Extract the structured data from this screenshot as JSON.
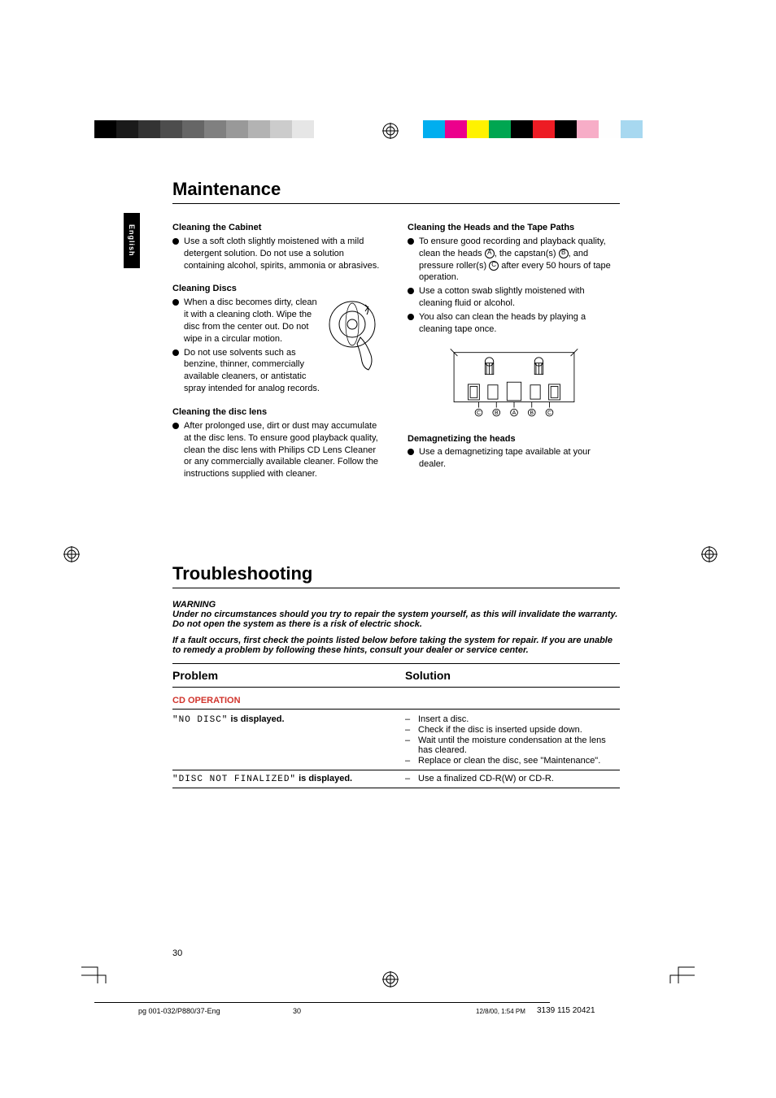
{
  "color_bars": {
    "left": [
      "#000000",
      "#1a1a1a",
      "#333333",
      "#4d4d4d",
      "#666666",
      "#808080",
      "#999999",
      "#b3b3b3",
      "#cccccc",
      "#e6e6e6"
    ],
    "right": [
      "#00aeef",
      "#ec008c",
      "#fff200",
      "#00a651",
      "#000000",
      "#ed1c24",
      "#000000",
      "#f7adc7",
      "#fefefe",
      "#a7d8f0"
    ]
  },
  "language_tab": "English",
  "maintenance": {
    "title": "Maintenance",
    "left_col": {
      "cabinet_head": "Cleaning the Cabinet",
      "cabinet_text": "Use a soft cloth slightly moistened with a mild detergent solution. Do not use a solution containing alcohol, spirits, ammonia or abrasives.",
      "discs_head": "Cleaning Discs",
      "discs_text1": "When a disc becomes dirty, clean it with a cleaning cloth. Wipe the disc from the center out.  Do not wipe in a circular motion.",
      "discs_text2": "Do not use solvents such as benzine, thinner, commercially available cleaners, or antistatic spray intended for analog records.",
      "lens_head": "Cleaning the disc lens",
      "lens_text": "After prolonged use, dirt or dust may accumulate at the disc lens. To ensure good playback quality, clean the disc lens with Philips CD Lens Cleaner or any commercially available cleaner. Follow the instructions supplied with cleaner."
    },
    "right_col": {
      "heads_head": "Cleaning the Heads and the Tape Paths",
      "heads_text1_pre": "To ensure good recording and playback quality, clean the heads ",
      "heads_text1_mid1": ", the capstan(s) ",
      "heads_text1_mid2": ", and pressure roller(s) ",
      "heads_text1_post": " after every 50 hours of tape operation.",
      "heads_text2": "Use a cotton swab slightly moistened with cleaning fluid or alcohol.",
      "heads_text3": "You also can clean the heads by playing a cleaning tape once.",
      "demag_head": "Demagnetizing the heads",
      "demag_text": "Use a demagnetizing tape available at your dealer.",
      "diagram_labels": [
        "C",
        "B",
        "A",
        "B",
        "C"
      ]
    }
  },
  "troubleshooting": {
    "title": "Troubleshooting",
    "warning_head": "WARNING",
    "warning_body": "Under no circumstances should you try to repair the system yourself, as this will invalidate the warranty.  Do not open the system as there is a risk of electric shock.",
    "warning_sub": "If a fault occurs, first check the points listed below before taking the system for repair. If you are unable to remedy a problem by following these hints, consult your dealer or service center.",
    "col_problem": "Problem",
    "col_solution": "Solution",
    "section_cd": "CD OPERATION",
    "rows": [
      {
        "problem_lcd": "\"NO DISC\"",
        "problem_suffix": " is displayed.",
        "solutions": [
          "Insert a disc.",
          "Check if the disc is inserted upside down.",
          "Wait until the moisture condensation at the lens has cleared.",
          "Replace or clean the disc, see \"Maintenance\"."
        ]
      },
      {
        "problem_lcd": "\"DISC NOT FINALIZED\"",
        "problem_suffix": " is displayed.",
        "solutions": [
          "Use a finalized CD-R(W) or CD-R."
        ]
      }
    ]
  },
  "footer": {
    "page_number": "30",
    "doc_ref": "pg 001-032/P880/37-Eng",
    "center_page": "30",
    "timestamp": "12/8/00, 1:54 PM",
    "part_no": "3139 115 20421"
  }
}
